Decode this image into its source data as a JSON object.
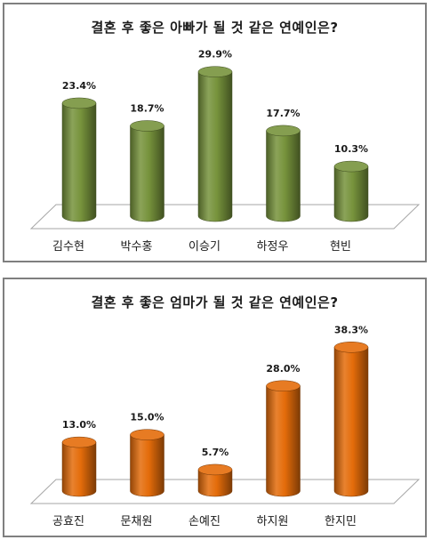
{
  "chart_data": [
    {
      "type": "bar",
      "title": "결혼 후 좋은 아빠가 될 것 같은 연예인은?",
      "categories": [
        "김수현",
        "박수홍",
        "이승기",
        "하정우",
        "현빈"
      ],
      "values": [
        23.4,
        18.7,
        29.9,
        17.7,
        10.3
      ],
      "value_labels": [
        "23.4%",
        "18.7%",
        "29.9%",
        "17.7%",
        "10.3%"
      ],
      "ylim": [
        0,
        35
      ],
      "grid": false,
      "bar_color": "#77933c"
    },
    {
      "type": "bar",
      "title": "결혼 후 좋은 엄마가 될 것 같은 연예인은?",
      "categories": [
        "공효진",
        "문채원",
        "손예진",
        "하지원",
        "한지민"
      ],
      "values": [
        13.0,
        15.0,
        5.7,
        28.0,
        38.3
      ],
      "value_labels": [
        "13.0%",
        "15.0%",
        "5.7%",
        "28.0%",
        "38.3%"
      ],
      "ylim": [
        0,
        45
      ],
      "grid": false,
      "bar_color": "#e46c0a"
    }
  ]
}
